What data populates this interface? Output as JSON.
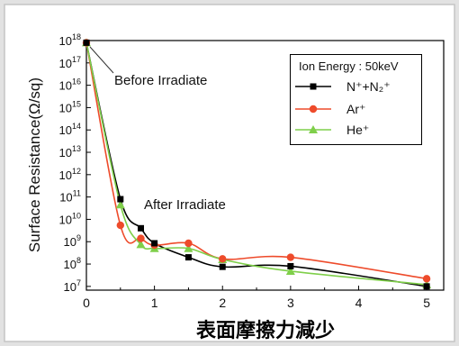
{
  "chart_data": {
    "type": "line",
    "caption": "表面摩擦力減少",
    "xlabel": "",
    "ylabel": "Surface Resistance(Ω/sq)",
    "xlim": [
      0,
      5.25
    ],
    "ylim": [
      6800000.0,
      1e+18
    ],
    "yscale": "log",
    "xticks": [
      0,
      1,
      2,
      3,
      4,
      5
    ],
    "yticks": [
      10000000.0,
      100000000.0,
      1000000000.0,
      10000000000.0,
      100000000000.0,
      1000000000000.0,
      10000000000000.0,
      100000000000000.0,
      1000000000000000.0,
      1e+16,
      1e+17,
      1e+18
    ],
    "grid": false,
    "legend": {
      "title": "Ion Energy : 50keV",
      "position": "top-right"
    },
    "series": [
      {
        "name": "N⁺+N₂⁺",
        "color": "#000000",
        "marker": "square",
        "x": [
          0,
          0.5,
          0.8,
          1,
          1.5,
          2,
          3,
          5
        ],
        "y": [
          8e+17,
          80000000000.0,
          4000000000.0,
          850000000.0,
          200000000.0,
          75000000.0,
          80000000.0,
          10000000.0
        ]
      },
      {
        "name": "Ar⁺",
        "color": "#ee4b2b",
        "marker": "circle",
        "x": [
          0,
          0.5,
          0.8,
          1,
          1.5,
          2,
          3,
          5
        ],
        "y": [
          8e+17,
          5400000000.0,
          1400000000.0,
          700000000.0,
          850000000.0,
          170000000.0,
          200000000.0,
          22000000.0
        ]
      },
      {
        "name": "He⁺",
        "color": "#7fcf4a",
        "marker": "triangle",
        "x": [
          0,
          0.5,
          0.8,
          1,
          1.5,
          2,
          3,
          5
        ],
        "y": [
          8e+17,
          45000000000.0,
          750000000.0,
          500000000.0,
          500000000.0,
          160000000.0,
          48000000.0,
          12000000.0
        ]
      }
    ],
    "annotations": [
      "Before Irradiate",
      "After Irradiate"
    ]
  }
}
